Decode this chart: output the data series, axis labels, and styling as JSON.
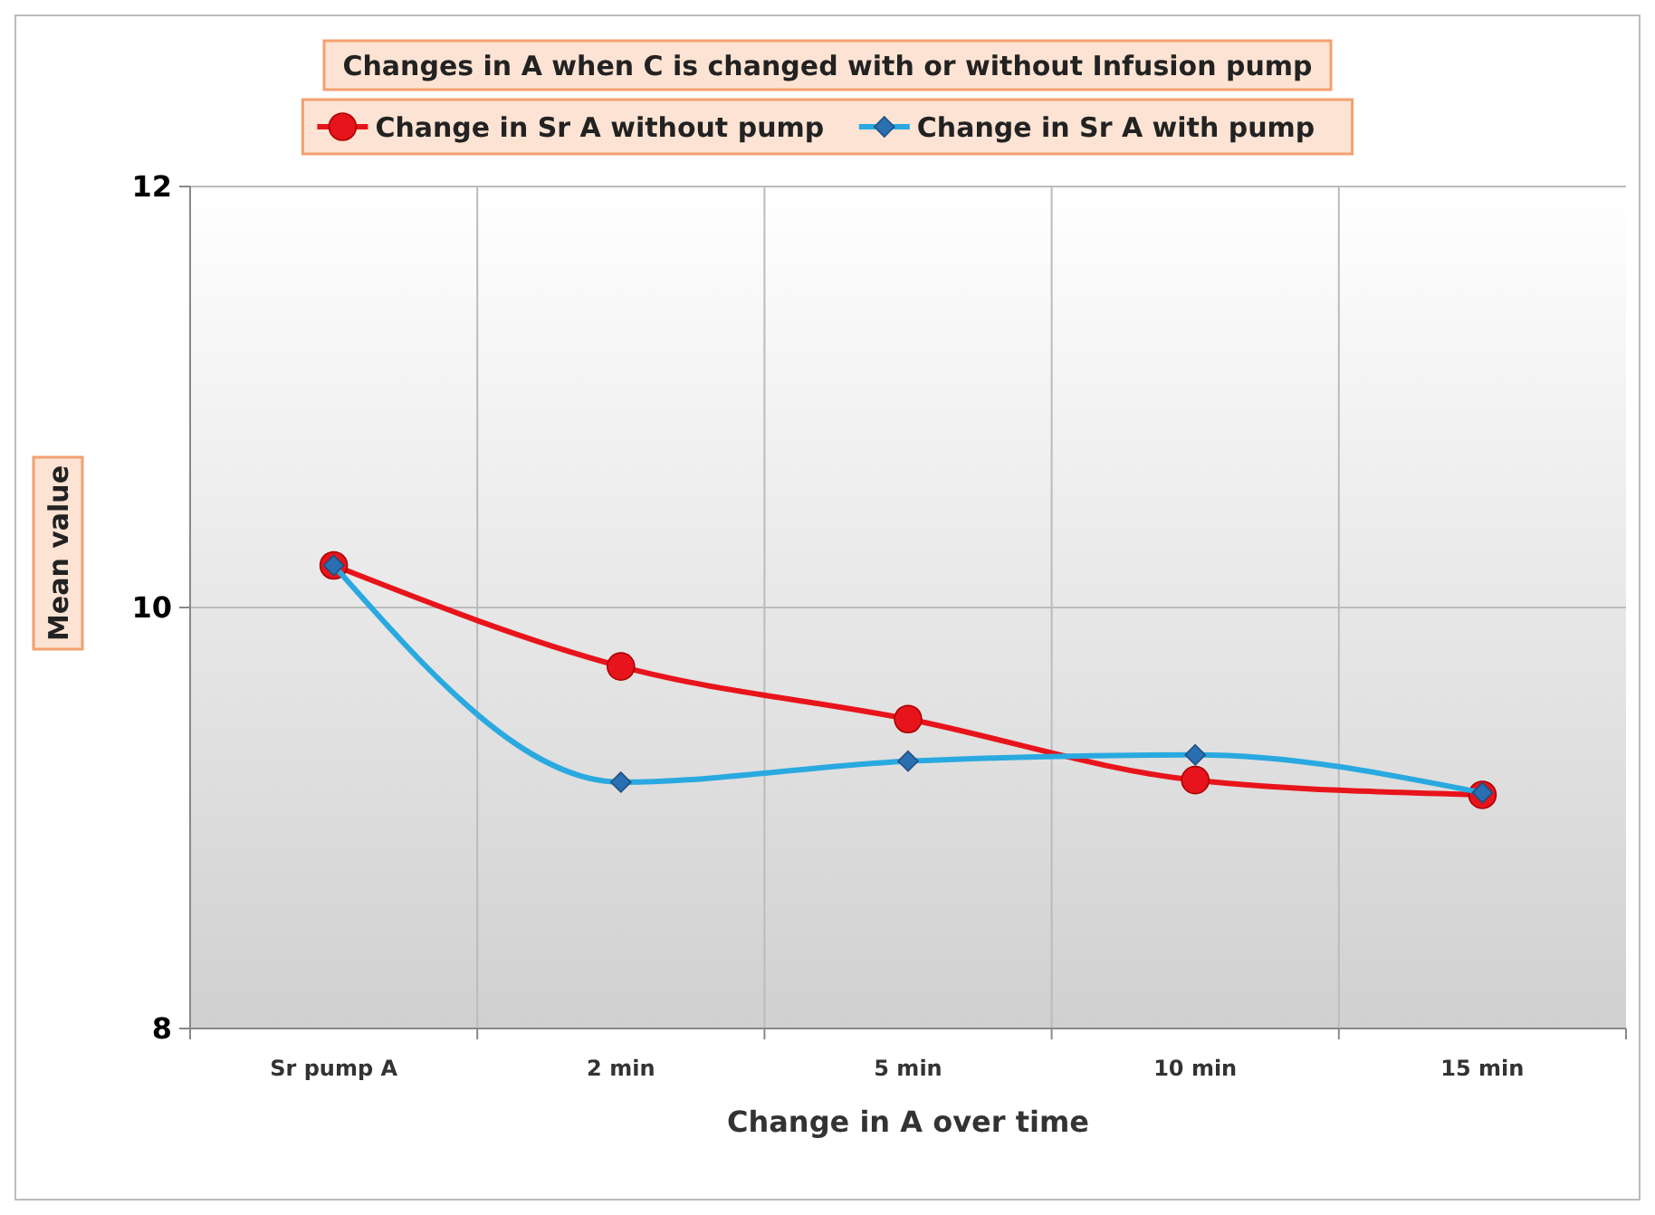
{
  "chart_data": {
    "type": "line",
    "title": "Changes in A when C is changed with or without Infusion pump",
    "xlabel": "Change in A over time",
    "ylabel": "Mean value",
    "categories": [
      "Sr pump A",
      "2 min",
      "5 min",
      "10 min",
      "15 min"
    ],
    "series": [
      {
        "name": "Change in Sr A without pump",
        "color": "#e8141b",
        "marker": "circle",
        "values": [
          10.2,
          9.72,
          9.47,
          9.18,
          9.11
        ]
      },
      {
        "name": "Change in Sr A with pump",
        "color": "#29a9e0",
        "marker": "diamond",
        "values": [
          10.2,
          9.17,
          9.27,
          9.3,
          9.12
        ]
      }
    ],
    "ylim": [
      8,
      12
    ],
    "yticks": [
      8,
      10,
      12
    ],
    "grid": true,
    "legend": "top"
  }
}
